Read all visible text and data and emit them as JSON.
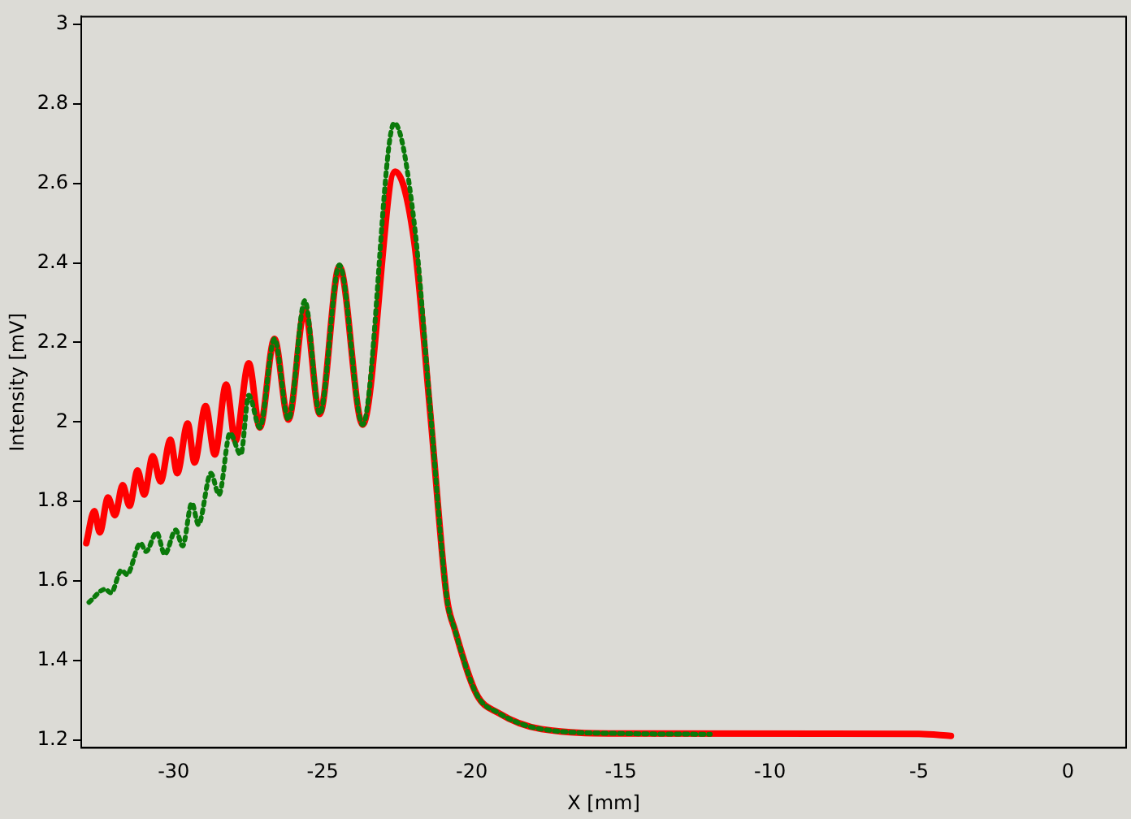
{
  "chart_data": {
    "type": "line",
    "xlabel": "X [mm]",
    "ylabel": "Intensity [mV]",
    "xlim": [
      -33.1,
      1.95
    ],
    "xticks": [
      -30,
      -25,
      -20,
      -15,
      -10,
      -5,
      0
    ],
    "ylim": [
      1.18,
      3.02
    ],
    "yticks": [
      1.2,
      1.4,
      1.6,
      1.8,
      2,
      2.2,
      2.4,
      2.6,
      2.8,
      3
    ],
    "grid": false,
    "legend": false,
    "marker": "none",
    "series": [
      {
        "color": "#0a7a0a",
        "line_style": "dotted",
        "x": [
          -32.84,
          -32.3,
          -32.1,
          -31.75,
          -31.57,
          -31.11,
          -30.93,
          -30.57,
          -30.3,
          -29.93,
          -29.7,
          -29.39,
          -29.17,
          -28.75,
          -28.48,
          -28.11,
          -27.75,
          -27.48,
          -27.11,
          -26.62,
          -26.15,
          -25.6,
          -25.1,
          -24.44,
          -23.66,
          -22.6,
          -21.93,
          -21.39,
          -20.84,
          -20.57,
          -19.84,
          -19.11,
          -17.66,
          -14.93,
          -12
        ],
        "values": [
          1.546,
          1.579,
          1.57,
          1.627,
          1.616,
          1.695,
          1.674,
          1.722,
          1.667,
          1.728,
          1.688,
          1.796,
          1.742,
          1.871,
          1.817,
          1.972,
          1.918,
          2.067,
          1.986,
          2.209,
          2.006,
          2.305,
          2.02,
          2.395,
          1.993,
          2.752,
          2.5,
          2.03,
          1.559,
          1.478,
          1.315,
          1.268,
          1.227,
          1.216,
          1.214
        ]
      },
      {
        "color": "#ff0000",
        "line_style": "solid",
        "x": [
          -32.93,
          -32.66,
          -32.48,
          -32.2,
          -31.97,
          -31.71,
          -31.48,
          -31.21,
          -30.99,
          -30.7,
          -30.44,
          -30.11,
          -29.88,
          -29.53,
          -29.3,
          -28.93,
          -28.62,
          -28.24,
          -27.93,
          -27.48,
          -27.11,
          -26.62,
          -26.15,
          -25.6,
          -25.1,
          -24.44,
          -23.66,
          -22.57,
          -21.93,
          -21.39,
          -20.84,
          -20.57,
          -19.84,
          -19.11,
          -17.66,
          -14.93,
          -5,
          -3.93
        ],
        "values": [
          1.695,
          1.776,
          1.722,
          1.81,
          1.765,
          1.841,
          1.789,
          1.878,
          1.817,
          1.914,
          1.85,
          1.955,
          1.871,
          1.996,
          1.898,
          2.04,
          1.918,
          2.094,
          1.952,
          2.148,
          1.986,
          2.209,
          2.006,
          2.284,
          2.02,
          2.392,
          1.993,
          2.63,
          2.453,
          2.02,
          1.559,
          1.478,
          1.315,
          1.268,
          1.227,
          1.216,
          1.215,
          1.21
        ]
      }
    ]
  }
}
